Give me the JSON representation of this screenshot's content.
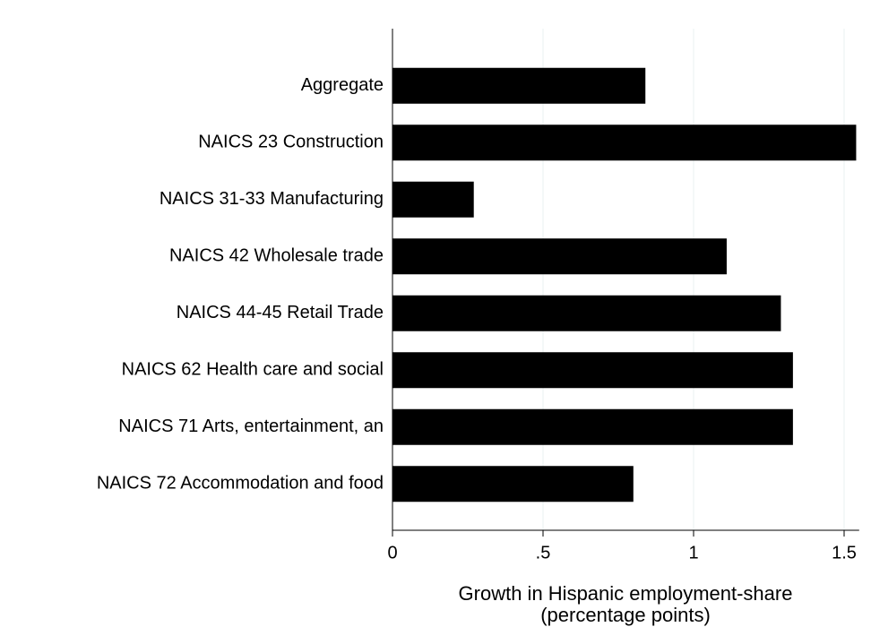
{
  "chart_data": {
    "type": "bar",
    "orientation": "horizontal",
    "categories": [
      "Aggregate",
      "NAICS 23 Construction",
      "NAICS 31-33 Manufacturing",
      "NAICS 42 Wholesale trade",
      "NAICS 44-45 Retail Trade",
      "NAICS 62 Health care and social",
      "NAICS 71 Arts, entertainment, an",
      "NAICS 72 Accommodation and food"
    ],
    "values": [
      0.84,
      1.54,
      0.27,
      1.11,
      1.29,
      1.33,
      1.33,
      0.8
    ],
    "color": "#000000",
    "xlim": [
      0,
      1.55
    ],
    "xticks": [
      0,
      {
        "value": 0.5,
        "label": ".5"
      },
      1,
      1.5
    ],
    "xlabel": [
      "Growth in Hispanic employment-share",
      "(percentage points)"
    ],
    "grid": true
  }
}
